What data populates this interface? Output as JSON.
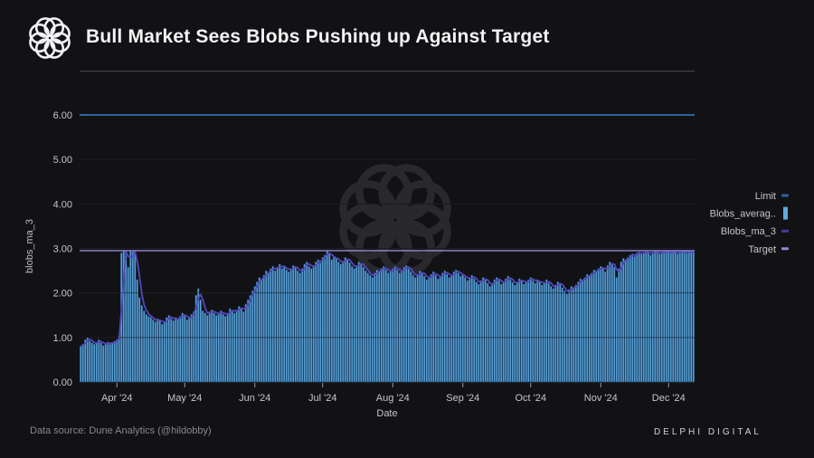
{
  "header": {
    "title": "Bull Market Sees Blobs Pushing up Against Target"
  },
  "footer": {
    "source": "Data source: Dune Analytics (@hildobby)",
    "brand": "DELPHI DIGITAL"
  },
  "chart_data": {
    "type": "bar",
    "title": "Bull Market Sees Blobs Pushing up Against Target",
    "xlabel": "Date",
    "ylabel": "blobs_ma_3",
    "ylim": [
      0,
      6.2
    ],
    "grid": true,
    "legend_position": "right-outside",
    "y_ticks": [
      {
        "label": "0.00",
        "value": 0
      },
      {
        "label": "1.00",
        "value": 1
      },
      {
        "label": "2.00",
        "value": 2
      },
      {
        "label": "3.00",
        "value": 3
      },
      {
        "label": "4.00",
        "value": 4
      },
      {
        "label": "5.00",
        "value": 5
      },
      {
        "label": "6.00",
        "value": 6
      }
    ],
    "x_ticks": [
      {
        "label": "Apr '24",
        "day": 16
      },
      {
        "label": "May '24",
        "day": 46
      },
      {
        "label": "Jun '24",
        "day": 77
      },
      {
        "label": "Jul '24",
        "day": 107
      },
      {
        "label": "Aug '24",
        "day": 138
      },
      {
        "label": "Sep '24",
        "day": 169
      },
      {
        "label": "Oct '24",
        "day": 199
      },
      {
        "label": "Nov '24",
        "day": 230
      },
      {
        "label": "Dec '24",
        "day": 260
      }
    ],
    "reference_lines": {
      "limit": {
        "label": "Limit",
        "value": 6.0,
        "color": "#2f639e"
      },
      "target": {
        "label": "Target",
        "value": 2.95,
        "color": "#9189d6"
      }
    },
    "series": [
      {
        "name": "Blobs_averag..",
        "type": "bar",
        "color": "#5fa9db",
        "values": [
          0.8,
          0.85,
          0.95,
          1.0,
          0.92,
          0.88,
          0.85,
          0.9,
          0.95,
          0.88,
          0.82,
          0.86,
          0.9,
          0.85,
          0.88,
          0.92,
          0.95,
          1.05,
          2.9,
          2.95,
          2.92,
          2.58,
          2.95,
          2.93,
          2.9,
          2.3,
          1.9,
          1.72,
          1.6,
          1.52,
          1.48,
          1.45,
          1.4,
          1.35,
          1.42,
          1.38,
          1.3,
          1.35,
          1.45,
          1.5,
          1.42,
          1.38,
          1.45,
          1.4,
          1.48,
          1.55,
          1.48,
          1.4,
          1.45,
          1.52,
          1.58,
          1.95,
          2.1,
          1.85,
          1.6,
          1.55,
          1.5,
          1.58,
          1.62,
          1.55,
          1.5,
          1.55,
          1.6,
          1.52,
          1.48,
          1.55,
          1.65,
          1.6,
          1.55,
          1.62,
          1.7,
          1.65,
          1.58,
          1.75,
          1.85,
          1.95,
          2.05,
          2.15,
          2.25,
          2.35,
          2.3,
          2.4,
          2.5,
          2.45,
          2.55,
          2.6,
          2.5,
          2.58,
          2.65,
          2.55,
          2.6,
          2.52,
          2.48,
          2.55,
          2.62,
          2.58,
          2.5,
          2.45,
          2.55,
          2.65,
          2.7,
          2.6,
          2.55,
          2.62,
          2.7,
          2.75,
          2.68,
          2.8,
          2.85,
          2.95,
          2.88,
          2.75,
          2.82,
          2.78,
          2.7,
          2.65,
          2.72,
          2.8,
          2.75,
          2.68,
          2.6,
          2.55,
          2.62,
          2.7,
          2.65,
          2.58,
          2.5,
          2.45,
          2.4,
          2.35,
          2.45,
          2.52,
          2.48,
          2.55,
          2.6,
          2.52,
          2.45,
          2.5,
          2.55,
          2.6,
          2.52,
          2.45,
          2.5,
          2.58,
          2.62,
          2.55,
          2.48,
          2.4,
          2.35,
          2.42,
          2.5,
          2.45,
          2.38,
          2.3,
          2.35,
          2.42,
          2.48,
          2.4,
          2.32,
          2.38,
          2.45,
          2.5,
          2.42,
          2.35,
          2.4,
          2.48,
          2.52,
          2.45,
          2.38,
          2.42,
          2.35,
          2.28,
          2.35,
          2.4,
          2.32,
          2.25,
          2.2,
          2.28,
          2.35,
          2.3,
          2.22,
          2.15,
          2.22,
          2.3,
          2.35,
          2.28,
          2.2,
          2.25,
          2.32,
          2.38,
          2.3,
          2.24,
          2.18,
          2.25,
          2.32,
          2.28,
          2.2,
          2.25,
          2.3,
          2.35,
          2.28,
          2.22,
          2.3,
          2.25,
          2.18,
          2.24,
          2.3,
          2.22,
          2.15,
          2.1,
          2.18,
          2.25,
          2.2,
          2.12,
          2.05,
          1.98,
          2.08,
          2.15,
          2.1,
          2.18,
          2.25,
          2.32,
          2.28,
          2.35,
          2.42,
          2.38,
          2.45,
          2.52,
          2.48,
          2.55,
          2.6,
          2.55,
          2.48,
          2.62,
          2.7,
          2.65,
          2.58,
          2.35,
          2.55,
          2.7,
          2.78,
          2.72,
          2.8,
          2.85,
          2.88,
          2.82,
          2.9,
          2.92,
          2.87,
          2.91,
          2.93,
          2.9,
          2.85,
          2.92,
          2.94,
          2.9,
          2.88,
          2.92,
          2.94,
          2.91,
          2.93,
          2.9,
          2.94,
          2.92,
          2.88,
          2.93,
          2.95,
          2.92,
          2.9,
          2.94,
          2.91,
          2.93
        ]
      },
      {
        "name": "Blobs_ma_3",
        "type": "line",
        "color": "#5347bd",
        "derived": "3-day trailing moving average of Blobs_averag.."
      }
    ],
    "legend": [
      {
        "label": "Limit",
        "marker": "dash",
        "color": "#2f639e"
      },
      {
        "label": "Blobs_averag..",
        "marker": "bar",
        "color": "#5fa9db"
      },
      {
        "label": "Blobs_ma_3",
        "marker": "dash",
        "color": "#463c9e"
      },
      {
        "label": "Target",
        "marker": "dash",
        "color": "#9189d6"
      }
    ]
  },
  "colors": {
    "background": "#121215",
    "bar_fill": "#5fa9db",
    "bar_stroke": "#1b4268",
    "ma_line": "#5347bd",
    "target_line": "#9189d6",
    "limit_line": "#2f639e",
    "grid": "#2b2b31",
    "baseline": "#3a3a40",
    "tick_text": "#c6c6cb",
    "axis_title_text": "#bcbcc2",
    "watermark": "#28282d",
    "logo": "#f2f2f4"
  }
}
